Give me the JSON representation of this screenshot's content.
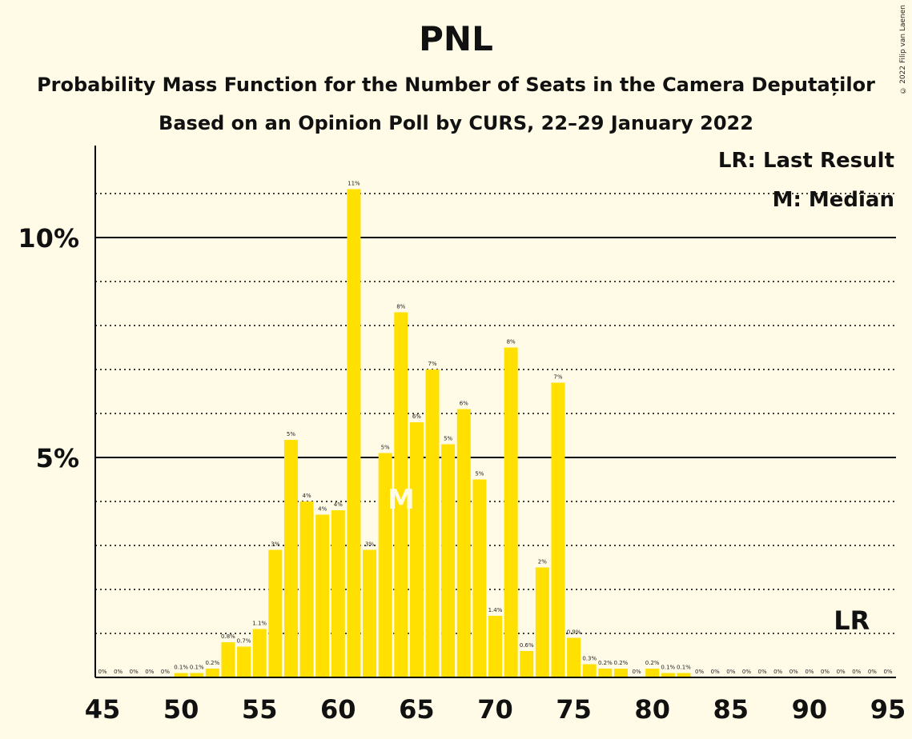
{
  "title": "PNL",
  "subtitle": "Probability Mass Function for the Number of Seats in the Camera Deputaților",
  "subtitle2": "Based on an Opinion Poll by CURS, 22–29 January 2022",
  "copyright": "© 2022 Filip van Laenen",
  "legend": {
    "lr": "LR: Last Result",
    "m": "M: Median"
  },
  "markers": {
    "median_label": "M",
    "median_seat": 64,
    "last_result_label": "LR",
    "last_result_seat": 93
  },
  "colors": {
    "bar": "#FFE000",
    "background": "#FFFBE6"
  },
  "chart_data": {
    "type": "bar",
    "x": [
      45,
      46,
      47,
      48,
      49,
      50,
      51,
      52,
      53,
      54,
      55,
      56,
      57,
      58,
      59,
      60,
      61,
      62,
      63,
      64,
      65,
      66,
      67,
      68,
      69,
      70,
      71,
      72,
      73,
      74,
      75,
      76,
      77,
      78,
      79,
      80,
      81,
      82,
      83,
      84,
      85,
      86,
      87,
      88,
      89,
      90,
      91,
      92,
      93,
      94,
      95
    ],
    "values": [
      0,
      0,
      0,
      0,
      0,
      0.1,
      0.1,
      0.2,
      0.8,
      0.7,
      1.1,
      2.9,
      5.4,
      4.0,
      3.7,
      3.8,
      11.1,
      2.9,
      5.1,
      8.3,
      5.8,
      7.0,
      5.3,
      6.1,
      4.5,
      1.4,
      7.5,
      0.6,
      2.5,
      6.7,
      0.9,
      0.3,
      0.2,
      0.2,
      0,
      0.2,
      0.1,
      0.1,
      0,
      0,
      0,
      0,
      0,
      0,
      0,
      0,
      0,
      0,
      0,
      0,
      0
    ],
    "labels": [
      "0%",
      "0%",
      "0%",
      "0%",
      "0%",
      "0.1%",
      "0.1%",
      "0.2%",
      "0.8%",
      "0.7%",
      "1.1%",
      "3%",
      "5%",
      "4%",
      "4%",
      "4%",
      "11%",
      "3%",
      "5%",
      "8%",
      "6%",
      "7%",
      "5%",
      "6%",
      "5%",
      "1.4%",
      "8%",
      "0.6%",
      "2%",
      "7%",
      "0.9%",
      "0.3%",
      "0.2%",
      "0.2%",
      "0%",
      "0.2%",
      "0.1%",
      "0.1%",
      "0%",
      "0%",
      "0%",
      "0%",
      "0%",
      "0%",
      "0%",
      "0%",
      "0%",
      "0%",
      "0%",
      "0%",
      "0%"
    ],
    "x_ticks": [
      "45",
      "50",
      "55",
      "60",
      "65",
      "70",
      "75",
      "80",
      "85",
      "90",
      "95"
    ],
    "y_ticks": [
      {
        "value": 5,
        "label": "5%"
      },
      {
        "value": 10,
        "label": "10%"
      }
    ],
    "ylim": [
      0,
      12
    ],
    "unit": "%",
    "grid": "dotted every 1%, solid at 5% and 10%"
  }
}
